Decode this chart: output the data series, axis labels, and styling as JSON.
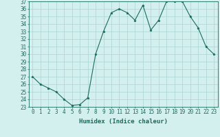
{
  "x": [
    0,
    1,
    2,
    3,
    4,
    5,
    6,
    7,
    8,
    9,
    10,
    11,
    12,
    13,
    14,
    15,
    16,
    17,
    18,
    19,
    20,
    21,
    22,
    23
  ],
  "y": [
    27,
    26,
    25.5,
    25,
    24,
    23.2,
    23.3,
    24.2,
    30,
    33,
    35.5,
    36,
    35.5,
    34.5,
    36.5,
    33.2,
    34.5,
    37,
    37,
    37,
    35,
    33.5,
    31,
    30
  ],
  "line_color": "#1a6b5a",
  "marker": "*",
  "marker_size": 2.5,
  "bg_color": "#d4f0ee",
  "grid_color": "#a8d4d0",
  "xlabel": "Humidex (Indice chaleur)",
  "tick_fontsize": 5.5,
  "xlabel_fontsize": 6.5,
  "ylim": [
    23,
    37
  ],
  "xlim": [
    -0.5,
    23.5
  ],
  "yticks": [
    23,
    24,
    25,
    26,
    27,
    28,
    29,
    30,
    31,
    32,
    33,
    34,
    35,
    36,
    37
  ],
  "xticks": [
    0,
    1,
    2,
    3,
    4,
    5,
    6,
    7,
    8,
    9,
    10,
    11,
    12,
    13,
    14,
    15,
    16,
    17,
    18,
    19,
    20,
    21,
    22,
    23
  ]
}
